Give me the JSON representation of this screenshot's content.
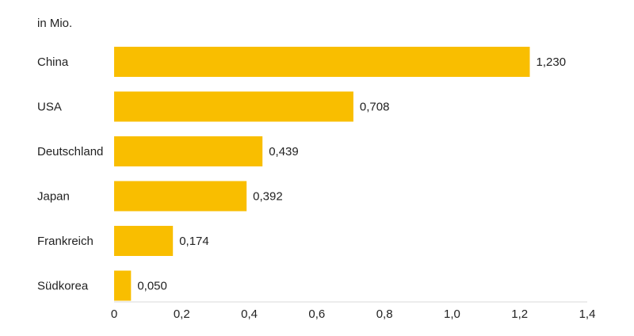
{
  "chart_data": {
    "type": "bar",
    "orientation": "horizontal",
    "unit_label": "in Mio.",
    "categories": [
      "China",
      "USA",
      "Deutschland",
      "Japan",
      "Frankreich",
      "Südkorea"
    ],
    "values": [
      1.23,
      0.708,
      0.439,
      0.392,
      0.174,
      0.05
    ],
    "value_labels": [
      "1,230",
      "0,708",
      "0,439",
      "0,392",
      "0,174",
      "0,050"
    ],
    "xlim": [
      0,
      1.4
    ],
    "x_ticks": [
      0,
      0.2,
      0.4,
      0.6,
      0.8,
      1.0,
      1.2,
      1.4
    ],
    "x_tick_labels": [
      "0",
      "0,2",
      "0,4",
      "0,6",
      "0,8",
      "1,0",
      "1,2",
      "1,4"
    ],
    "grid": false,
    "legend": "none",
    "bar_color": "#f9be00",
    "axis_color": "#d9d9d9"
  }
}
